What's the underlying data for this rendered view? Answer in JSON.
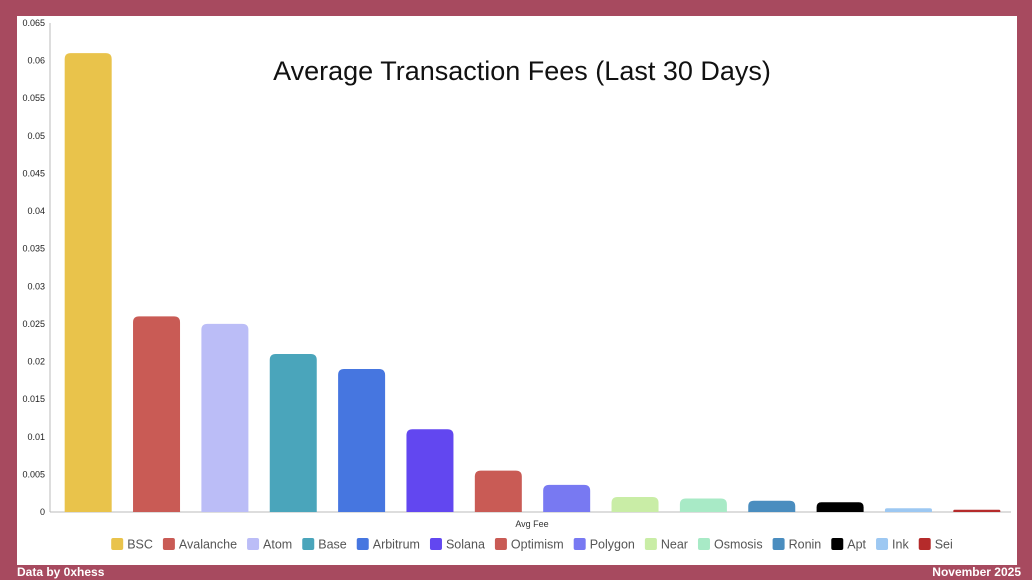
{
  "page": {
    "frame_color": "#A74A5F",
    "footer_left": "Data by 0xhess",
    "footer_right": "November 2025"
  },
  "chart_data": {
    "type": "bar",
    "title": "Average Transaction Fees (Last 30 Days)",
    "xlabel": "Avg Fee",
    "ylabel": "",
    "ylim": [
      0,
      0.065
    ],
    "y_ticks": [
      "0",
      "0.005",
      "0.01",
      "0.015",
      "0.02",
      "0.025",
      "0.03",
      "0.035",
      "0.04",
      "0.045",
      "0.05",
      "0.055",
      "0.06",
      "0.065"
    ],
    "grid": false,
    "legend_position": "bottom",
    "series": [
      {
        "name": "BSC",
        "value": 0.061,
        "color": "#E9C34B"
      },
      {
        "name": "Avalanche",
        "value": 0.026,
        "color": "#C95B55"
      },
      {
        "name": "Atom",
        "value": 0.025,
        "color": "#BBBDF7"
      },
      {
        "name": "Base",
        "value": 0.021,
        "color": "#4AA5BB"
      },
      {
        "name": "Arbitrum",
        "value": 0.019,
        "color": "#4676E0"
      },
      {
        "name": "Solana",
        "value": 0.011,
        "color": "#6247F0"
      },
      {
        "name": "Optimism",
        "value": 0.0055,
        "color": "#C95B55"
      },
      {
        "name": "Polygon",
        "value": 0.0036,
        "color": "#7879F2"
      },
      {
        "name": "Near",
        "value": 0.002,
        "color": "#C9EDA6"
      },
      {
        "name": "Osmosis",
        "value": 0.0018,
        "color": "#A8EAC6"
      },
      {
        "name": "Ronin",
        "value": 0.0015,
        "color": "#4A8DBF"
      },
      {
        "name": "Apt",
        "value": 0.0013,
        "color": "#000000"
      },
      {
        "name": "Ink",
        "value": 0.0005,
        "color": "#9DC8F2"
      },
      {
        "name": "Sei",
        "value": 0.0003,
        "color": "#B52B2B"
      }
    ]
  }
}
